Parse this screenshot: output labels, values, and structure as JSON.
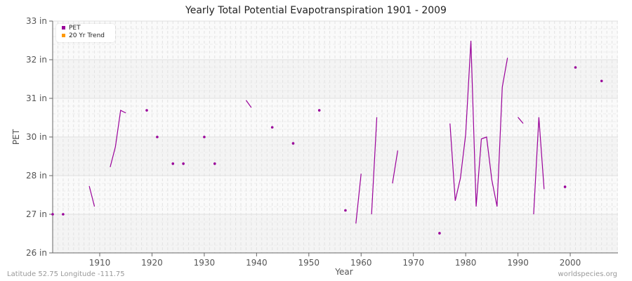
{
  "title": "Yearly Total Potential Evapotranspiration 1901 - 2009",
  "footer": {
    "left": "Latitude 52.75 Longitude -111.75",
    "right": "worldspecies.org"
  },
  "legend": [
    {
      "label": "PET",
      "color": "#990099"
    },
    {
      "label": "20 Yr Trend",
      "color": "#ff9900"
    }
  ],
  "chart_data": {
    "type": "line",
    "title": "Yearly Total Potential Evapotranspiration 1901 - 2009",
    "xlabel": "Year",
    "ylabel": "PET",
    "x_ticks": [
      "1910",
      "1920",
      "1930",
      "1940",
      "1950",
      "1960",
      "1970",
      "1980",
      "1990",
      "2000"
    ],
    "y_ticks": [
      "26 in",
      "27 in",
      "28 in",
      "30 in",
      "31 in",
      "32 in",
      "33 in"
    ],
    "xlim": [
      1901,
      2009
    ],
    "grid": true,
    "legend_position": "top-left",
    "series": [
      {
        "name": "PET",
        "color": "#990099",
        "points": [
          [
            1901,
            27.0
          ],
          [
            1903,
            27.0
          ],
          [
            1908,
            27.73
          ],
          [
            1909,
            27.2
          ],
          [
            1912,
            28.44
          ],
          [
            1913,
            29.49
          ],
          [
            1914,
            30.69
          ],
          [
            1915,
            30.62
          ],
          [
            1919,
            30.69
          ],
          [
            1921,
            30.0
          ],
          [
            1924,
            28.62
          ],
          [
            1926,
            28.62
          ],
          [
            1930,
            30.0
          ],
          [
            1932,
            28.62
          ],
          [
            1938,
            30.95
          ],
          [
            1939,
            30.76
          ],
          [
            1943,
            30.25
          ],
          [
            1947,
            29.67
          ],
          [
            1952,
            30.69
          ],
          [
            1957,
            27.1
          ],
          [
            1959,
            26.76
          ],
          [
            1960,
            28.1
          ],
          [
            1962,
            27.0
          ],
          [
            1963,
            30.51
          ],
          [
            1966,
            27.8
          ],
          [
            1967,
            29.3
          ],
          [
            1975,
            26.51
          ],
          [
            1977,
            30.35
          ],
          [
            1978,
            27.35
          ],
          [
            1979,
            27.94
          ],
          [
            1980,
            30.07
          ],
          [
            1981,
            32.49
          ],
          [
            1982,
            27.2
          ],
          [
            1983,
            29.9
          ],
          [
            1984,
            30.0
          ],
          [
            1985,
            27.89
          ],
          [
            1986,
            27.2
          ],
          [
            1987,
            31.29
          ],
          [
            1988,
            32.05
          ],
          [
            1990,
            30.51
          ],
          [
            1991,
            30.35
          ],
          [
            1993,
            27.0
          ],
          [
            1994,
            30.51
          ],
          [
            1995,
            27.65
          ],
          [
            1999,
            27.71
          ],
          [
            2001,
            31.8
          ],
          [
            2006,
            31.45
          ]
        ]
      },
      {
        "name": "20 Yr Trend",
        "color": "#ff9900",
        "points": []
      }
    ]
  }
}
